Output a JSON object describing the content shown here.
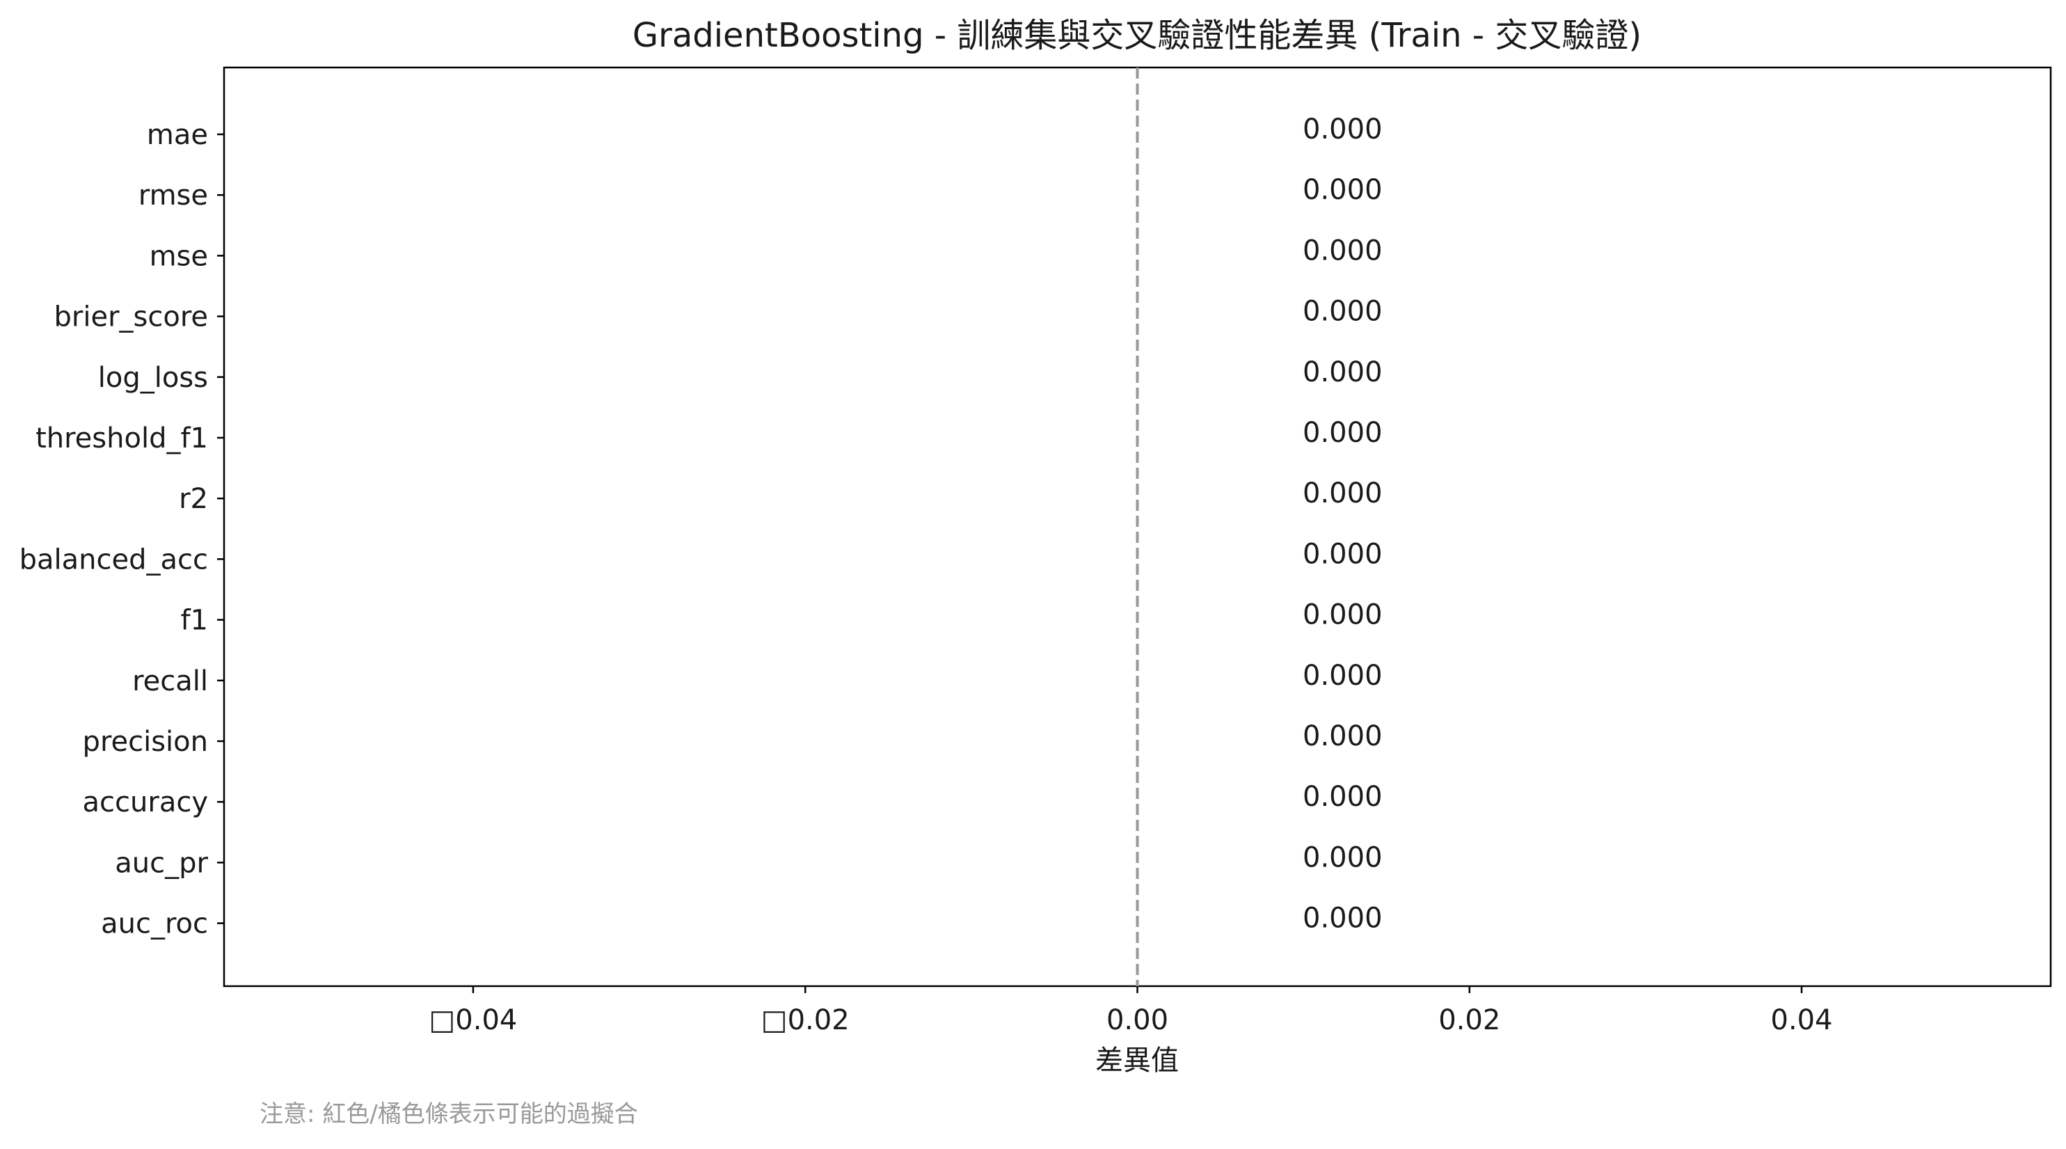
{
  "chart_data": {
    "type": "bar",
    "orientation": "horizontal",
    "title": "GradientBoosting - 訓練集與交叉驗證性能差異 (Train - 交叉驗證)",
    "xlabel": "差異值",
    "ylabel": "",
    "categories": [
      "mae",
      "rmse",
      "mse",
      "brier_score",
      "log_loss",
      "threshold_f1",
      "r2",
      "balanced_acc",
      "f1",
      "recall",
      "precision",
      "accuracy",
      "auc_pr",
      "auc_roc"
    ],
    "values": [
      0.0,
      0.0,
      0.0,
      0.0,
      0.0,
      0.0,
      0.0,
      0.0,
      0.0,
      0.0,
      0.0,
      0.0,
      0.0,
      0.0
    ],
    "value_labels": [
      "0.000",
      "0.000",
      "0.000",
      "0.000",
      "0.000",
      "0.000",
      "0.000",
      "0.000",
      "0.000",
      "0.000",
      "0.000",
      "0.000",
      "0.000",
      "0.000"
    ],
    "xlim": [
      -0.055,
      0.055
    ],
    "xticks": [
      -0.04,
      -0.02,
      0.0,
      0.02,
      0.04
    ],
    "xtick_labels": [
      "□0.04",
      "□0.02",
      "0.00",
      "0.02",
      "0.04"
    ],
    "reference_line": {
      "x": 0.0,
      "style": "dashed",
      "color": "#999999"
    },
    "grid": false,
    "legend": "none",
    "note": "注意: 紅色/橘色條表示可能的過擬合",
    "colors": {
      "text": "#1a1a1a",
      "note": "#999999",
      "axis": "#000000",
      "reference": "#999999"
    }
  }
}
